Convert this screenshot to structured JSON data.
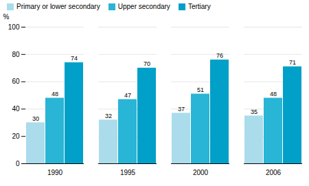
{
  "chart_data": {
    "type": "bar",
    "categories": [
      "1990",
      "1995",
      "2000",
      "2006"
    ],
    "series": [
      {
        "name": "Primary or lower secondary",
        "color": "#aadcec",
        "values": [
          30,
          32,
          37,
          35
        ]
      },
      {
        "name": "Upper secondary",
        "color": "#29b5d5",
        "values": [
          48,
          47,
          51,
          48
        ]
      },
      {
        "name": "Tertiary",
        "color": "#00a0c8",
        "values": [
          74,
          70,
          76,
          71
        ]
      }
    ],
    "ylabel": "%",
    "ylim": [
      0,
      100
    ],
    "yticks": [
      0,
      20,
      40,
      60,
      80,
      100
    ],
    "grid": true,
    "legend": "upper left",
    "data_labels": true
  }
}
